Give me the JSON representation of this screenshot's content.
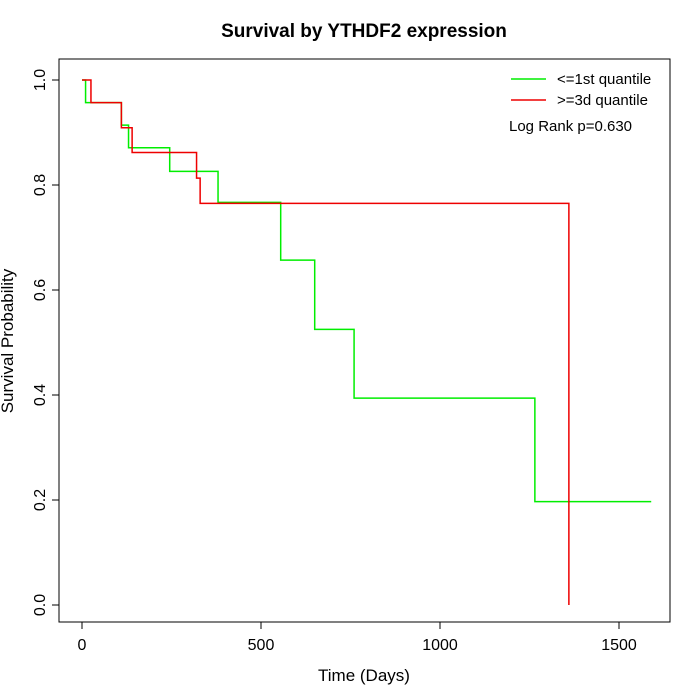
{
  "chart_data": {
    "type": "line",
    "subtype": "step",
    "title": "Survival by YTHDF2 expression",
    "xlabel": "Time (Days)",
    "ylabel": "Survival Probability",
    "xlim": [
      0,
      1620
    ],
    "ylim": [
      0,
      1.0
    ],
    "xticks": [
      0,
      500,
      1000,
      1500
    ],
    "yticks": [
      0.0,
      0.2,
      0.4,
      0.6,
      0.8,
      1.0
    ],
    "yticks_labels": [
      "0.0",
      "0.2",
      "0.4",
      "0.6",
      "0.8",
      "1.0"
    ],
    "grid": false,
    "legend_position": "top-right",
    "annotation": "Log Rank p=0.630",
    "series": [
      {
        "name": "<=1st quantile",
        "color": "#00ee00",
        "x": [
          0,
          10,
          110,
          130,
          245,
          380,
          555,
          650,
          760,
          1265,
          1590
        ],
        "y": [
          1.0,
          0.957,
          0.914,
          0.871,
          0.826,
          0.767,
          0.657,
          0.525,
          0.394,
          0.197,
          0.197
        ]
      },
      {
        "name": ">=3d quantile",
        "color": "#ee0000",
        "x": [
          0,
          25,
          110,
          140,
          320,
          330,
          1360,
          1360
        ],
        "y": [
          1.0,
          0.957,
          0.909,
          0.862,
          0.813,
          0.765,
          0.765,
          0.0
        ]
      }
    ]
  }
}
